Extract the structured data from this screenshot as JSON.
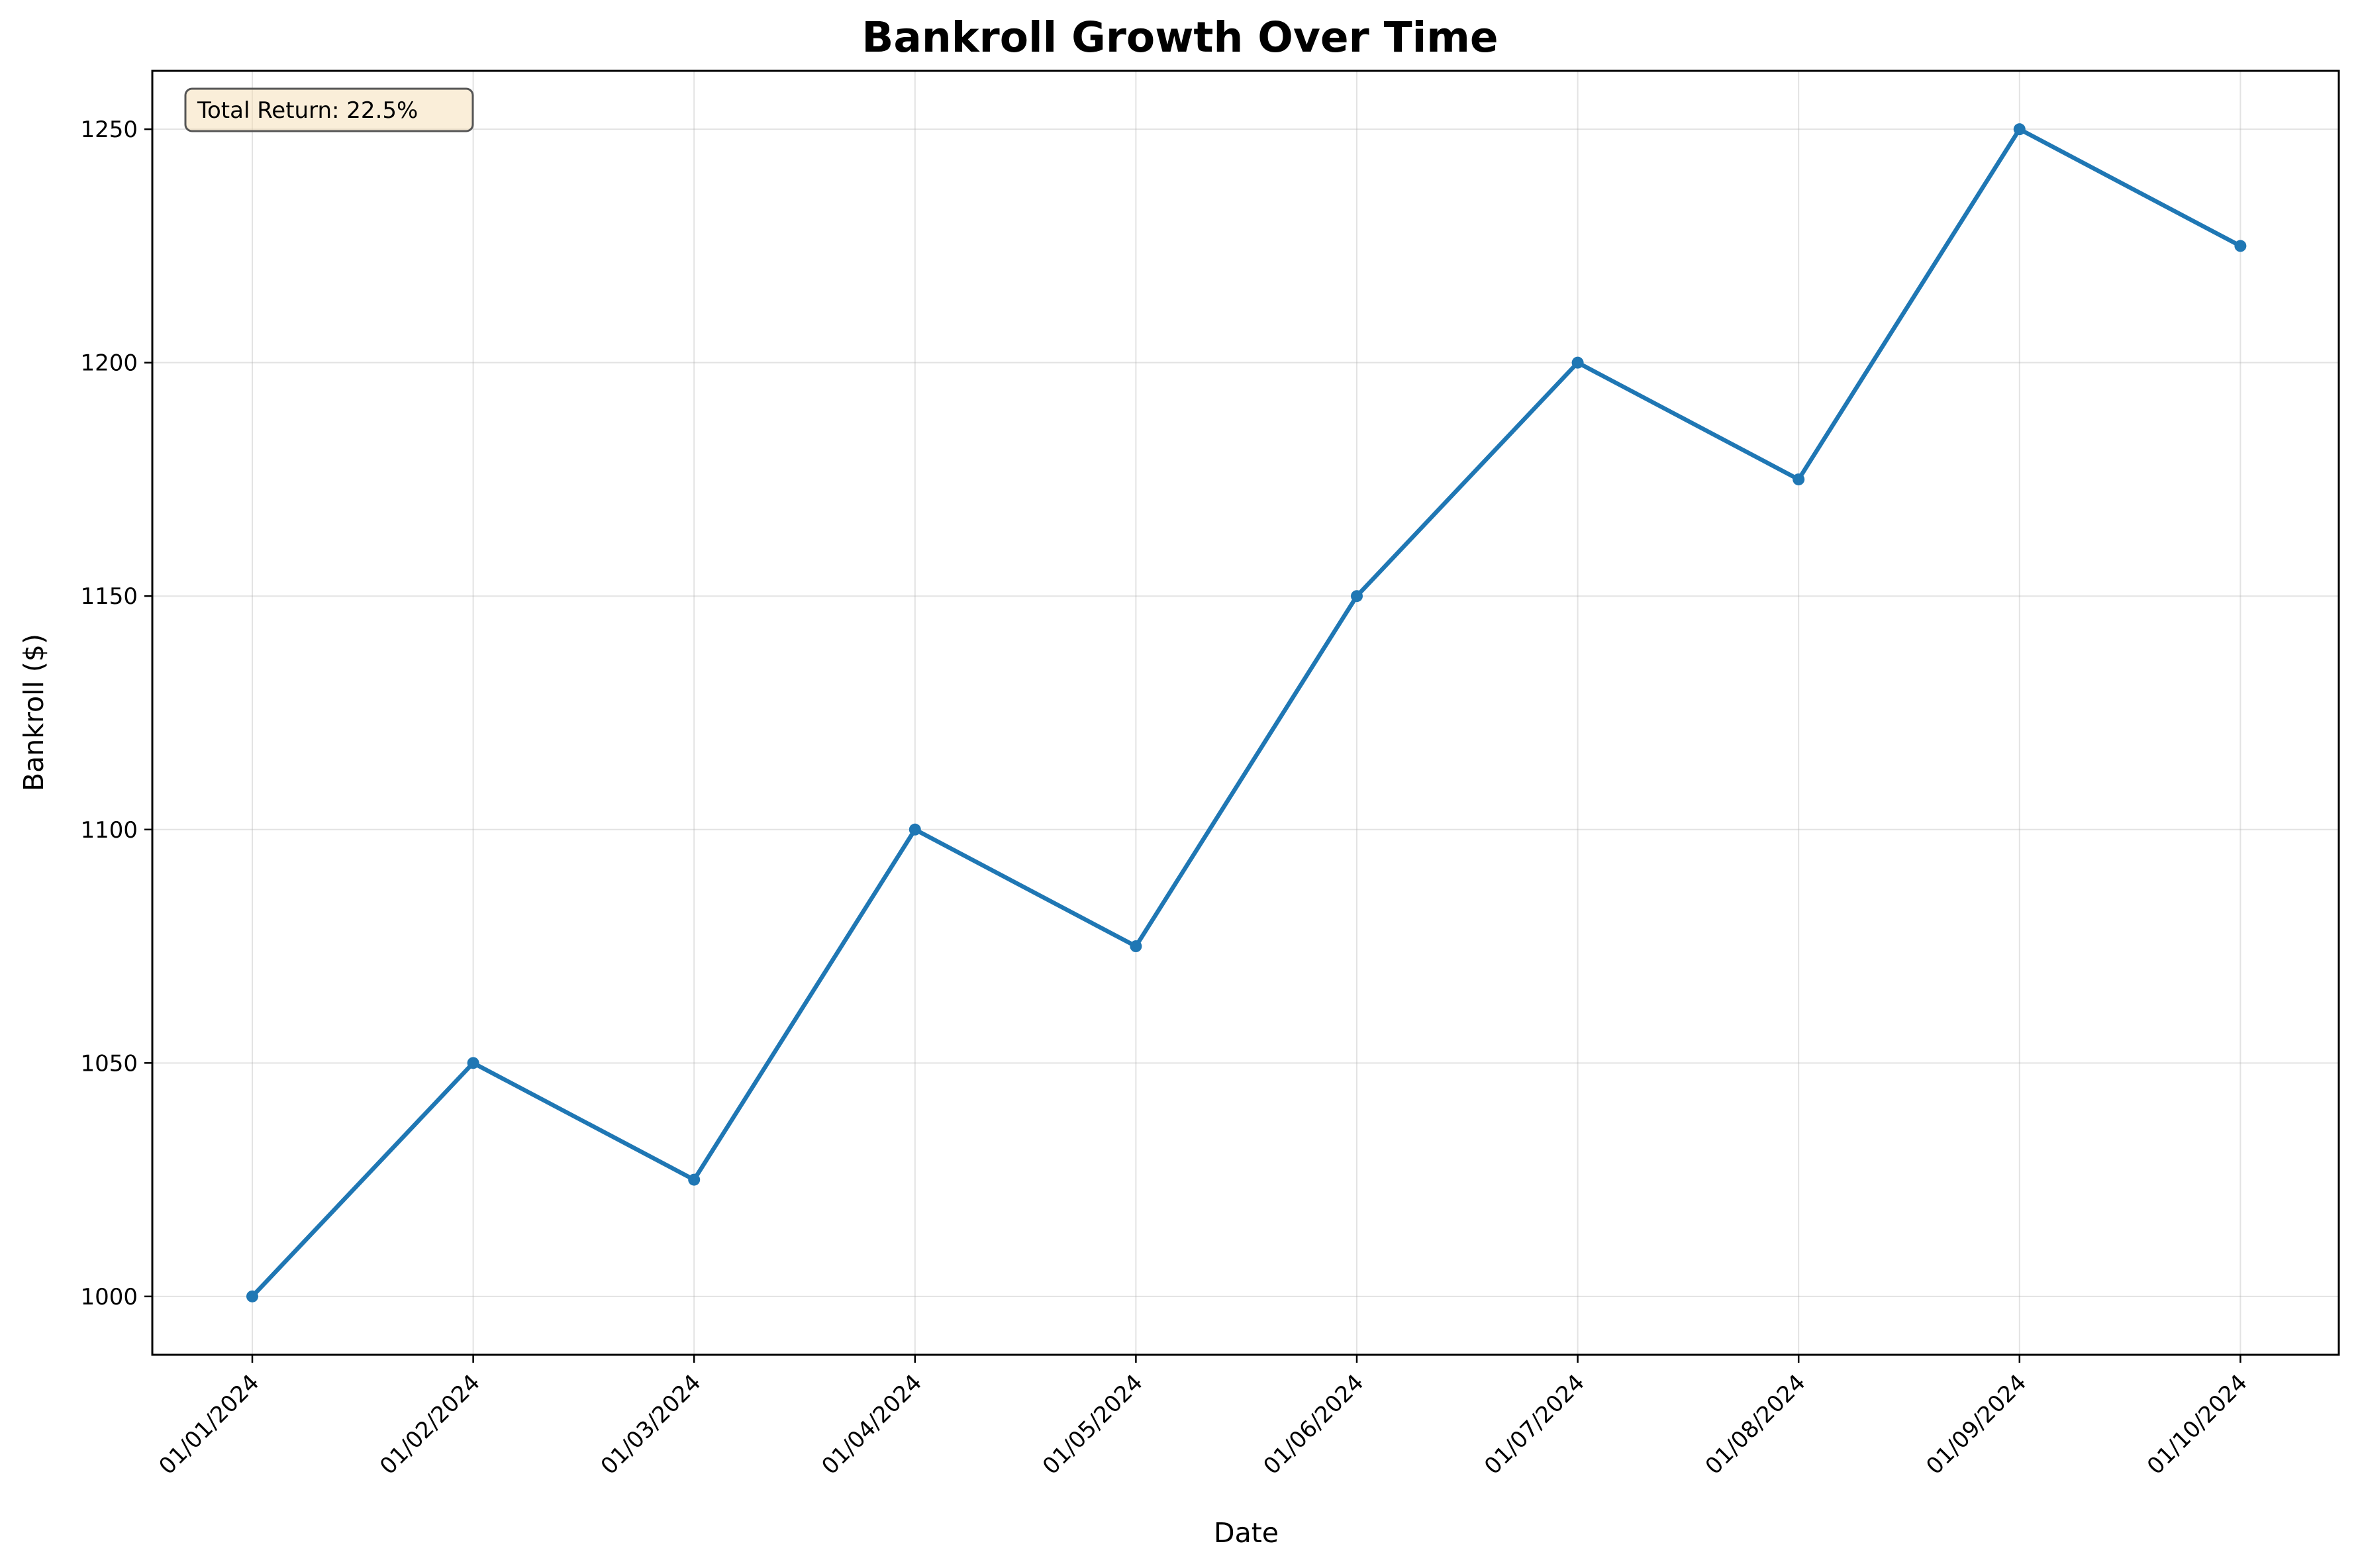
{
  "chart_data": {
    "type": "line",
    "title": "Bankroll Growth Over Time",
    "xlabel": "Date",
    "ylabel": "Bankroll ($)",
    "x": [
      "01/01/2024",
      "01/02/2024",
      "01/03/2024",
      "01/04/2024",
      "01/05/2024",
      "01/06/2024",
      "01/07/2024",
      "01/08/2024",
      "01/09/2024",
      "01/10/2024"
    ],
    "series": [
      {
        "values": [
          1000,
          1050,
          1025,
          1100,
          1075,
          1150,
          1200,
          1175,
          1250,
          1225
        ],
        "color": "#1f77b4"
      }
    ],
    "ylim": [
      987.5,
      1262.5
    ],
    "yticks": [
      1000,
      1050,
      1100,
      1150,
      1200,
      1250
    ],
    "grid": true,
    "annotation": {
      "text": "Total Return: 22.5%",
      "placement": "top-left"
    },
    "x_tick_rotation_deg": 45
  }
}
